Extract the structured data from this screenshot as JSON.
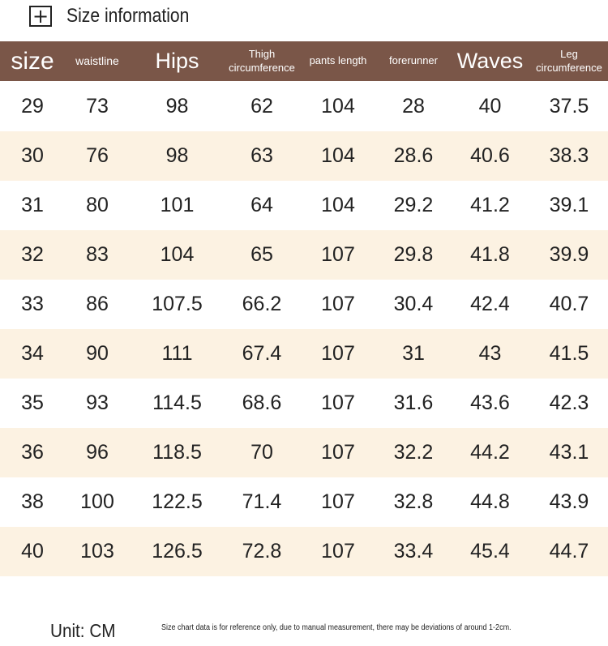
{
  "title": "Size information",
  "plus_symbol": "+",
  "headers": [
    {
      "line1": "size",
      "line2": ""
    },
    {
      "line1": "waistline",
      "line2": ""
    },
    {
      "line1": "Hips",
      "line2": ""
    },
    {
      "line1": "Thigh",
      "line2": "circumference"
    },
    {
      "line1": "pants length",
      "line2": ""
    },
    {
      "line1": "forerunner",
      "line2": ""
    },
    {
      "line1": "Waves",
      "line2": ""
    },
    {
      "line1": "Leg",
      "line2": "circumference"
    }
  ],
  "rows": [
    [
      "29",
      "73",
      "98",
      "62",
      "104",
      "28",
      "40",
      "37.5"
    ],
    [
      "30",
      "76",
      "98",
      "63",
      "104",
      "28.6",
      "40.6",
      "38.3"
    ],
    [
      "31",
      "80",
      "101",
      "64",
      "104",
      "29.2",
      "41.2",
      "39.1"
    ],
    [
      "32",
      "83",
      "104",
      "65",
      "107",
      "29.8",
      "41.8",
      "39.9"
    ],
    [
      "33",
      "86",
      "107.5",
      "66.2",
      "107",
      "30.4",
      "42.4",
      "40.7"
    ],
    [
      "34",
      "90",
      "111",
      "67.4",
      "107",
      "31",
      "43",
      "41.5"
    ],
    [
      "35",
      "93",
      "114.5",
      "68.6",
      "107",
      "31.6",
      "43.6",
      "42.3"
    ],
    [
      "36",
      "96",
      "118.5",
      "70",
      "107",
      "32.2",
      "44.2",
      "43.1"
    ],
    [
      "38",
      "100",
      "122.5",
      "71.4",
      "107",
      "32.8",
      "44.8",
      "43.9"
    ],
    [
      "40",
      "103",
      "126.5",
      "72.8",
      "107",
      "33.4",
      "45.4",
      "44.7"
    ]
  ],
  "unit": "Unit: CM",
  "note": "Size chart data is for reference only, due to manual measurement, there may be deviations of around 1-2cm.",
  "colors": {
    "header_bg": "#7a5648",
    "alt_row_bg": "#fcf2e2",
    "text": "#222222"
  }
}
